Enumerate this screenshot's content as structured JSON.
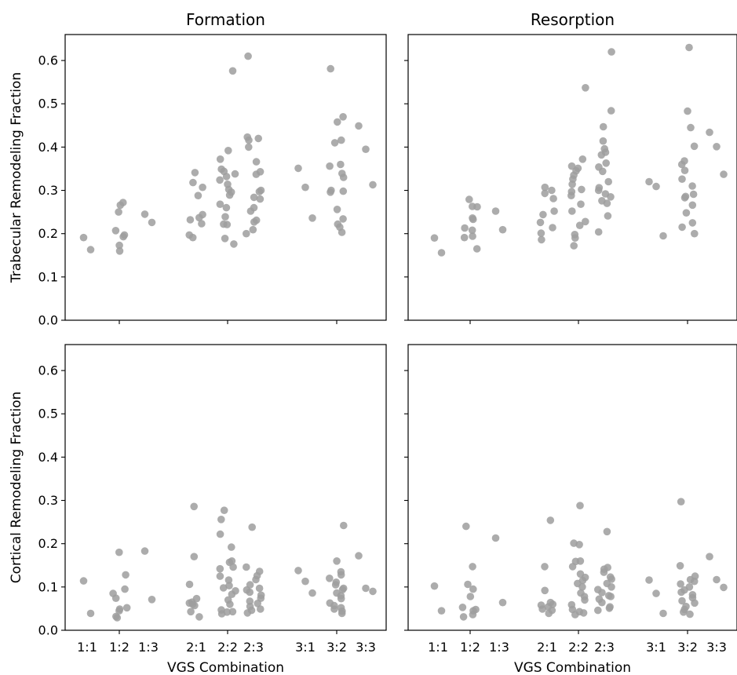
{
  "chart_data": {
    "type": "scatter",
    "xlabel": "VGS Combination",
    "ylim": [
      0,
      0.66
    ],
    "yticks": [
      "0.0",
      "0.1",
      "0.2",
      "0.3",
      "0.4",
      "0.5",
      "0.6"
    ],
    "categories": [
      "1:1",
      "1:2",
      "1:3",
      "2:1",
      "2:2",
      "2:3",
      "3:1",
      "3:2",
      "3:3"
    ],
    "column_titles": [
      "Formation",
      "Resorption"
    ],
    "row_labels": [
      "Trabecular Remodeling Fraction",
      "Cortical Remodeling Fraction"
    ],
    "grid": false,
    "marker_color": "#9e9e9e",
    "panels": [
      {
        "row": 0,
        "col": 0,
        "points": {
          "1:1": [
            0.191,
            0.163
          ],
          "1:2": [
            0.272,
            0.266,
            0.25,
            0.207,
            0.197,
            0.193,
            0.173,
            0.16
          ],
          "1:3": [
            0.245,
            0.226
          ],
          "2:1": [
            0.341,
            0.318,
            0.307,
            0.288,
            0.244,
            0.237,
            0.232,
            0.223,
            0.197,
            0.191
          ],
          "2:2": [
            0.576,
            0.392,
            0.372,
            0.349,
            0.344,
            0.338,
            0.332,
            0.324,
            0.314,
            0.302,
            0.296,
            0.289,
            0.268,
            0.26,
            0.239,
            0.222,
            0.221,
            0.189,
            0.176
          ],
          "2:3": [
            0.61,
            0.423,
            0.42,
            0.416,
            0.4,
            0.366,
            0.343,
            0.337,
            0.3,
            0.297,
            0.284,
            0.28,
            0.26,
            0.252,
            0.231,
            0.227,
            0.209,
            0.2
          ],
          "3:1": [
            0.351,
            0.307,
            0.236
          ],
          "3:2": [
            0.581,
            0.47,
            0.458,
            0.416,
            0.41,
            0.36,
            0.356,
            0.339,
            0.33,
            0.3,
            0.298,
            0.296,
            0.256,
            0.234,
            0.222,
            0.215,
            0.203
          ],
          "3:3": [
            0.449,
            0.395,
            0.313
          ]
        }
      },
      {
        "row": 0,
        "col": 1,
        "points": {
          "1:1": [
            0.19,
            0.156
          ],
          "1:2": [
            0.279,
            0.263,
            0.262,
            0.236,
            0.233,
            0.213,
            0.208,
            0.194,
            0.191,
            0.165
          ],
          "1:3": [
            0.252,
            0.209
          ],
          "2:1": [
            0.307,
            0.3,
            0.293,
            0.281,
            0.252,
            0.244,
            0.226,
            0.214,
            0.201,
            0.186
          ],
          "2:2": [
            0.537,
            0.372,
            0.356,
            0.351,
            0.345,
            0.335,
            0.326,
            0.314,
            0.302,
            0.297,
            0.288,
            0.268,
            0.252,
            0.228,
            0.219,
            0.198,
            0.19,
            0.172
          ],
          "2:3": [
            0.62,
            0.484,
            0.447,
            0.414,
            0.396,
            0.388,
            0.382,
            0.363,
            0.354,
            0.344,
            0.32,
            0.306,
            0.3,
            0.292,
            0.285,
            0.276,
            0.27,
            0.241,
            0.204
          ],
          "3:1": [
            0.32,
            0.309,
            0.195
          ],
          "3:2": [
            0.63,
            0.483,
            0.445,
            0.402,
            0.368,
            0.36,
            0.346,
            0.326,
            0.31,
            0.291,
            0.286,
            0.283,
            0.266,
            0.248,
            0.225,
            0.215,
            0.2
          ],
          "3:3": [
            0.434,
            0.401,
            0.337
          ]
        }
      },
      {
        "row": 1,
        "col": 0,
        "points": {
          "1:1": [
            0.114,
            0.039
          ],
          "1:2": [
            0.18,
            0.128,
            0.095,
            0.085,
            0.074,
            0.052,
            0.049,
            0.045,
            0.032,
            0.029
          ],
          "1:3": [
            0.183,
            0.071
          ],
          "2:1": [
            0.286,
            0.17,
            0.106,
            0.073,
            0.065,
            0.063,
            0.06,
            0.057,
            0.043,
            0.031
          ],
          "2:2": [
            0.277,
            0.256,
            0.222,
            0.192,
            0.16,
            0.157,
            0.146,
            0.142,
            0.125,
            0.116,
            0.103,
            0.098,
            0.091,
            0.083,
            0.07,
            0.06,
            0.047,
            0.043,
            0.042,
            0.038
          ],
          "2:3": [
            0.238,
            0.146,
            0.136,
            0.126,
            0.117,
            0.105,
            0.097,
            0.093,
            0.088,
            0.081,
            0.074,
            0.067,
            0.062,
            0.055,
            0.049,
            0.046,
            0.04
          ],
          "3:1": [
            0.138,
            0.113,
            0.086
          ],
          "3:2": [
            0.242,
            0.16,
            0.135,
            0.128,
            0.12,
            0.111,
            0.105,
            0.097,
            0.094,
            0.086,
            0.08,
            0.073,
            0.063,
            0.057,
            0.052,
            0.049,
            0.044,
            0.039
          ],
          "3:3": [
            0.172,
            0.097,
            0.09
          ]
        }
      },
      {
        "row": 1,
        "col": 1,
        "points": {
          "1:1": [
            0.102,
            0.045
          ],
          "1:2": [
            0.24,
            0.147,
            0.106,
            0.095,
            0.078,
            0.053,
            0.048,
            0.045,
            0.036,
            0.031
          ],
          "1:3": [
            0.213,
            0.064
          ],
          "2:1": [
            0.254,
            0.147,
            0.092,
            0.064,
            0.06,
            0.058,
            0.054,
            0.049,
            0.046,
            0.039
          ],
          "2:2": [
            0.288,
            0.201,
            0.198,
            0.16,
            0.159,
            0.147,
            0.13,
            0.122,
            0.115,
            0.108,
            0.1,
            0.086,
            0.078,
            0.07,
            0.059,
            0.048,
            0.043,
            0.04,
            0.036
          ],
          "2:3": [
            0.228,
            0.145,
            0.141,
            0.134,
            0.123,
            0.118,
            0.108,
            0.1,
            0.094,
            0.087,
            0.08,
            0.078,
            0.072,
            0.064,
            0.054,
            0.051,
            0.046
          ],
          "3:1": [
            0.116,
            0.085,
            0.039
          ],
          "3:2": [
            0.297,
            0.149,
            0.125,
            0.117,
            0.113,
            0.107,
            0.1,
            0.093,
            0.088,
            0.082,
            0.075,
            0.068,
            0.063,
            0.055,
            0.048,
            0.042,
            0.037
          ],
          "3:3": [
            0.17,
            0.117,
            0.099
          ]
        }
      }
    ]
  }
}
